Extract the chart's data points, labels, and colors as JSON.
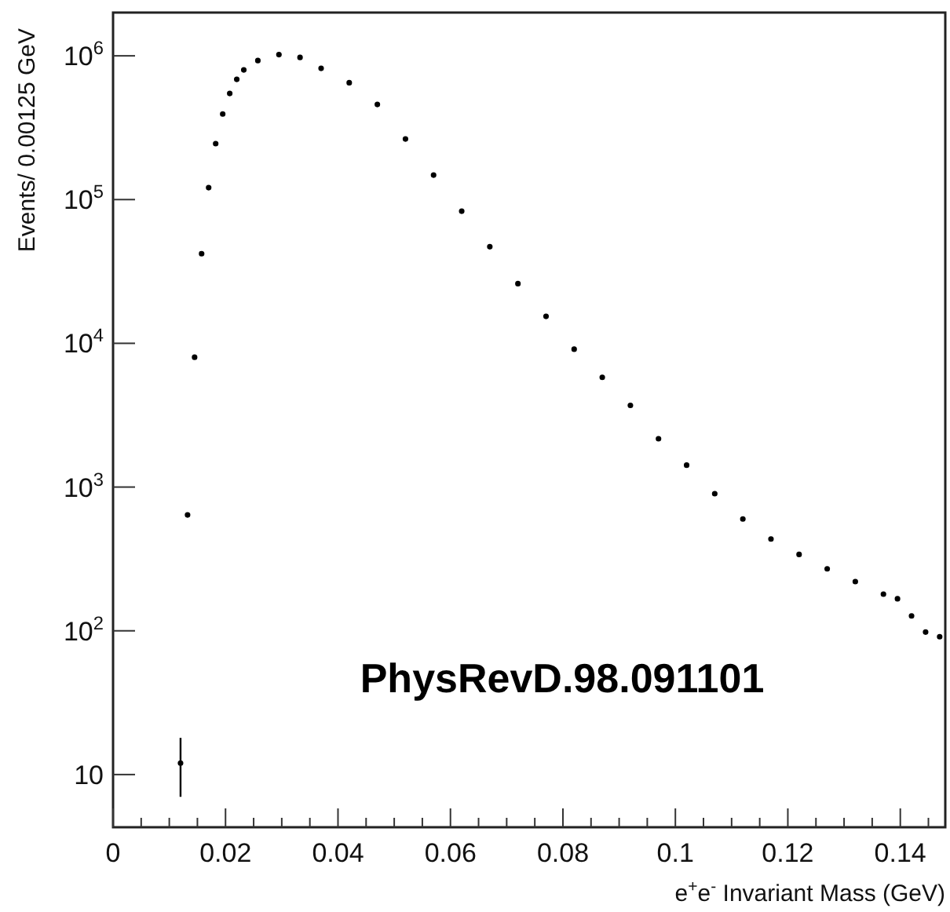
{
  "chart_data": {
    "type": "scatter",
    "xlabel": "e$^{+}$e$^{-}$ Invariant Mass (GeV)",
    "ylabel": "Events/ 0.00125 GeV",
    "annotations": [
      "PhysRevD.98.091101"
    ],
    "log": "y",
    "marker": "circle",
    "xlim": [
      0,
      0.148
    ],
    "xticks": [
      0,
      {
        "value": 0.005,
        "label": null
      },
      0.02,
      {
        "value": 0.01,
        "label": null
      },
      {
        "value": 0.015,
        "label": null
      },
      {
        "value": 0.025,
        "label": null
      },
      {
        "value": 0.03,
        "label": null
      },
      {
        "value": 0.035,
        "label": null
      },
      0.04,
      {
        "value": 0.045,
        "label": null
      },
      {
        "value": 0.05,
        "label": null
      },
      {
        "value": 0.055,
        "label": null
      },
      0.06,
      {
        "value": 0.065,
        "label": null
      },
      {
        "value": 0.07,
        "label": null
      },
      {
        "value": 0.075,
        "label": null
      },
      0.08,
      {
        "value": 0.085,
        "label": null
      },
      {
        "value": 0.09,
        "label": null
      },
      {
        "value": 0.095,
        "label": null
      },
      0.1,
      {
        "value": 0.105,
        "label": null
      },
      {
        "value": 0.11,
        "label": null
      },
      {
        "value": 0.115,
        "label": null
      },
      0.12,
      {
        "value": 0.125,
        "label": null
      },
      {
        "value": 0.13,
        "label": null
      },
      {
        "value": 0.135,
        "label": null
      },
      0.14,
      {
        "value": 0.145,
        "label": null
      }
    ],
    "ylim": [
      4.3,
      2000000
    ],
    "yticks": [
      10,
      {
        "value": 100,
        "label": "10$^{2}$"
      },
      {
        "value": 1000,
        "label": "10$^{3}$"
      },
      {
        "value": 10000,
        "label": "10$^{4}$"
      },
      {
        "value": 100000,
        "label": "10$^{5}$"
      },
      {
        "value": 1000000,
        "label": "10$^{6}$"
      }
    ],
    "series": [
      {
        "color": "#000000",
        "x": [
          0.012,
          0.01325,
          0.0145,
          0.01575,
          0.017,
          0.01825,
          0.0195,
          0.02075,
          0.022,
          0.02325,
          0.02575,
          0.0295,
          0.03325,
          0.037,
          0.042,
          0.047,
          0.052,
          0.057,
          0.062,
          0.067,
          0.072,
          0.077,
          0.082,
          0.087,
          0.092,
          0.097,
          0.102,
          0.107,
          0.112,
          0.117,
          0.122,
          0.127,
          0.132,
          0.137,
          0.1395,
          0.142,
          0.1445,
          0.147
        ],
        "values": [
          12,
          640,
          8000,
          42000,
          121000,
          245000,
          394000,
          547000,
          686000,
          798000,
          927000,
          1020000,
          975000,
          818000,
          650000,
          459000,
          264000,
          148000,
          83000,
          47000,
          26000,
          15400,
          9100,
          5800,
          3700,
          2170,
          1420,
          900,
          600,
          435,
          340,
          270,
          220,
          180,
          167,
          127,
          98,
          91
        ],
        "errors": [
          [
            7,
            18
          ],
          null,
          null,
          null,
          null,
          null,
          null,
          null,
          null,
          null,
          null,
          null,
          null,
          null,
          null,
          null,
          null,
          null,
          null,
          null,
          null,
          null,
          null,
          null,
          null,
          null,
          null,
          null,
          null,
          null,
          null,
          null,
          null,
          null,
          null,
          null,
          null,
          null
        ]
      }
    ]
  }
}
